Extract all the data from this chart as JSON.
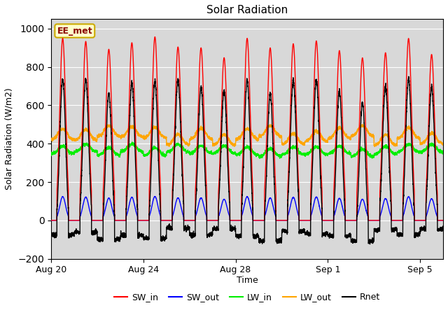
{
  "title": "Solar Radiation",
  "xlabel": "Time",
  "ylabel": "Solar Radiation (W/m2)",
  "ylim": [
    -200,
    1050
  ],
  "xlim_days": [
    0,
    17.0
  ],
  "site_label": "EE_met",
  "xtick_labels": [
    "Aug 20",
    "Aug 24",
    "Aug 28",
    "Sep 1",
    "Sep 5"
  ],
  "xtick_positions": [
    0,
    4,
    8,
    12,
    16
  ],
  "bg_color": "#d8d8d8",
  "fig_color": "#ffffff",
  "series": {
    "SW_in": {
      "color": "red",
      "lw": 1.0
    },
    "SW_out": {
      "color": "blue",
      "lw": 1.0
    },
    "LW_in": {
      "color": "#00ee00",
      "lw": 1.0
    },
    "LW_out": {
      "color": "orange",
      "lw": 1.0
    },
    "Rnet": {
      "color": "black",
      "lw": 1.0
    }
  },
  "n_days": 17,
  "pts_per_day": 288
}
